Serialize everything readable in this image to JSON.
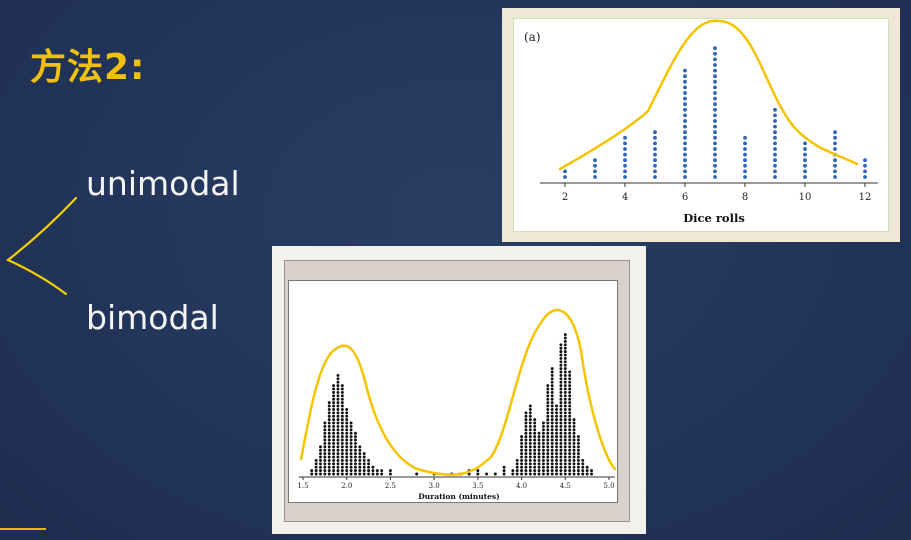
{
  "slide": {
    "title": "方法2:",
    "term_1": "unimodal",
    "term_2": "bimodal",
    "accent_color": "#f2c011",
    "annotation_color": "#f5d000"
  },
  "chart_data": [
    {
      "type": "dot",
      "panel_label": "(a)",
      "xlabel": "Dice rolls",
      "ylabel": "",
      "x_ticks": [
        "2",
        "4",
        "6",
        "8",
        "10",
        "12"
      ],
      "x": [
        2,
        3,
        4,
        5,
        6,
        7,
        8,
        9,
        10,
        11,
        12
      ],
      "counts": [
        2,
        4,
        8,
        9,
        20,
        24,
        8,
        13,
        7,
        9,
        4
      ],
      "xlim": [
        2,
        12
      ],
      "dot_color": "#2e63b8",
      "grid": false
    },
    {
      "type": "dot",
      "xlabel": "Duration (minutes)",
      "ylabel": "",
      "x_ticks": [
        "1.5",
        "2.0",
        "2.5",
        "3.0",
        "3.5",
        "4.0",
        "4.5",
        "5.0"
      ],
      "x": [
        1.6,
        1.65,
        1.7,
        1.75,
        1.8,
        1.85,
        1.9,
        1.95,
        2.0,
        2.05,
        2.1,
        2.15,
        2.2,
        2.25,
        2.3,
        2.35,
        2.4,
        2.5,
        2.8,
        3.0,
        3.2,
        3.3,
        3.4,
        3.5,
        3.6,
        3.7,
        3.8,
        3.9,
        3.95,
        4.0,
        4.05,
        4.1,
        4.15,
        4.2,
        4.25,
        4.3,
        4.35,
        4.4,
        4.45,
        4.5,
        4.55,
        4.6,
        4.65,
        4.7,
        4.75,
        4.8
      ],
      "counts": [
        2,
        5,
        9,
        16,
        22,
        27,
        30,
        27,
        20,
        16,
        13,
        9,
        7,
        5,
        3,
        2,
        2,
        2,
        1,
        1,
        1,
        1,
        2,
        2,
        1,
        1,
        3,
        2,
        5,
        12,
        19,
        21,
        17,
        13,
        16,
        27,
        32,
        21,
        39,
        42,
        31,
        17,
        12,
        5,
        3,
        2
      ],
      "xlim": [
        1.5,
        5.0
      ],
      "dot_color": "#111111",
      "grid": false
    }
  ]
}
